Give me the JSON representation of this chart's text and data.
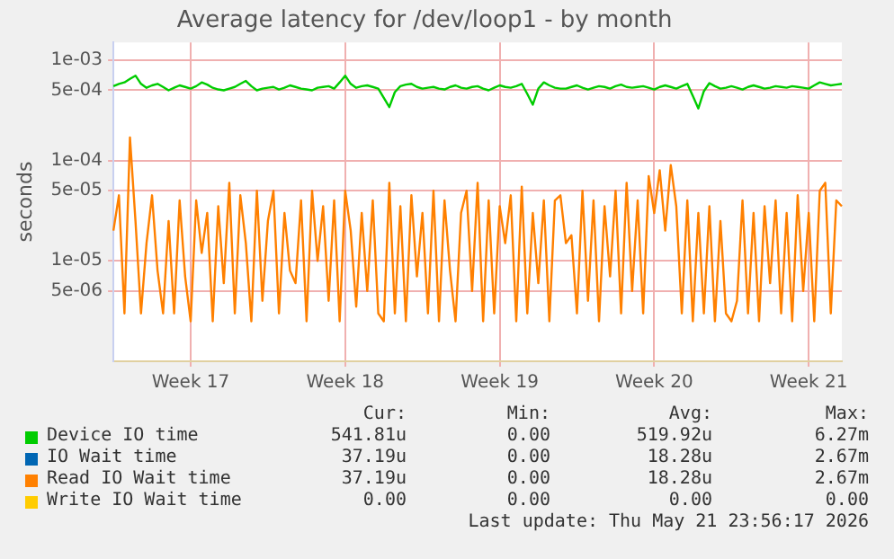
{
  "chart_data": {
    "type": "line",
    "title": "Average latency for /dev/loop1 - by month",
    "ylabel": "seconds",
    "categories": [
      null,
      null,
      null,
      null,
      null,
      null,
      null,
      null,
      null,
      null,
      null,
      null,
      null,
      null,
      "Week 17",
      null,
      null,
      null,
      null,
      null,
      null,
      null,
      null,
      null,
      null,
      null,
      null,
      null,
      null,
      null,
      null,
      null,
      null,
      null,
      null,
      null,
      null,
      null,
      null,
      null,
      null,
      null,
      "Week 18",
      null,
      null,
      null,
      null,
      null,
      null,
      null,
      null,
      null,
      null,
      null,
      null,
      null,
      null,
      null,
      null,
      null,
      null,
      null,
      null,
      null,
      null,
      null,
      null,
      null,
      null,
      null,
      "Week 19",
      null,
      null,
      null,
      null,
      null,
      null,
      null,
      null,
      null,
      null,
      null,
      null,
      null,
      null,
      null,
      null,
      null,
      null,
      null,
      null,
      null,
      null,
      null,
      null,
      null,
      null,
      null,
      "Week 20",
      null,
      null,
      null,
      null,
      null,
      null,
      null,
      null,
      null,
      null,
      null,
      null,
      null,
      null,
      null,
      null,
      null,
      null,
      null,
      null,
      null,
      null,
      null,
      null,
      null,
      null,
      null,
      "Week 21",
      null,
      null,
      null,
      null,
      null,
      null
    ],
    "series": [
      {
        "name": "Device IO time",
        "color": "#00cc00",
        "values": [
          0.00055,
          0.00058,
          0.0006,
          0.00065,
          0.0007,
          0.00058,
          0.00053,
          0.00056,
          0.00058,
          0.00054,
          0.0005,
          0.00053,
          0.00056,
          0.00054,
          0.00052,
          0.00055,
          0.0006,
          0.00057,
          0.00053,
          0.00051,
          0.0005,
          0.00052,
          0.00054,
          0.00058,
          0.00062,
          0.00055,
          0.0005,
          0.00052,
          0.00053,
          0.00054,
          0.00051,
          0.00053,
          0.00056,
          0.00054,
          0.00052,
          0.00051,
          0.0005,
          0.00053,
          0.00054,
          0.00055,
          0.00052,
          0.0006,
          0.0007,
          0.00058,
          0.00053,
          0.00055,
          0.00056,
          0.00054,
          0.00052,
          0.00042,
          0.00034,
          0.00048,
          0.00055,
          0.00057,
          0.00058,
          0.00054,
          0.00052,
          0.00053,
          0.00054,
          0.00052,
          0.00051,
          0.00054,
          0.00056,
          0.00053,
          0.00052,
          0.00054,
          0.00055,
          0.00052,
          0.0005,
          0.00053,
          0.00056,
          0.00054,
          0.00053,
          0.00055,
          0.00058,
          0.00046,
          0.00036,
          0.00052,
          0.0006,
          0.00056,
          0.00053,
          0.00052,
          0.00052,
          0.00054,
          0.00056,
          0.00053,
          0.00051,
          0.00053,
          0.00055,
          0.00054,
          0.00052,
          0.00055,
          0.00057,
          0.00054,
          0.00053,
          0.00054,
          0.00055,
          0.00053,
          0.00051,
          0.00054,
          0.00056,
          0.00054,
          0.00052,
          0.00055,
          0.00058,
          0.00044,
          0.00033,
          0.00049,
          0.00059,
          0.00055,
          0.00052,
          0.00053,
          0.00055,
          0.00053,
          0.00051,
          0.00054,
          0.00056,
          0.00054,
          0.00052,
          0.00053,
          0.00055,
          0.00054,
          0.00053,
          0.00055,
          0.00054,
          0.00053,
          0.00052,
          0.00056,
          0.0006,
          0.00058,
          0.00056,
          0.00057,
          0.00058
        ]
      },
      {
        "name": "IO Wait time",
        "color": "#0066b3",
        "values": [
          null,
          null,
          null,
          null,
          null,
          null,
          null,
          null,
          null,
          null,
          null,
          null,
          null,
          null,
          null,
          null,
          null,
          null,
          null,
          null,
          null,
          null,
          null,
          null,
          null,
          null,
          null,
          null,
          null,
          null,
          null,
          null,
          null,
          null,
          null,
          null,
          null,
          null,
          null,
          null,
          null,
          null,
          null,
          null,
          null,
          null,
          null,
          null,
          null,
          null,
          null,
          null,
          null,
          null,
          null,
          null,
          null,
          null,
          null,
          null,
          null,
          null,
          null,
          null,
          null,
          null,
          null,
          null,
          null,
          null,
          null,
          null,
          null,
          null,
          null,
          null,
          null,
          null,
          null,
          null,
          null,
          null,
          null,
          null,
          null,
          null,
          null,
          null,
          null,
          null,
          null,
          null,
          null,
          null,
          null,
          null,
          null,
          null,
          null,
          null,
          null,
          null,
          null,
          null,
          null,
          null,
          null,
          null,
          null,
          null,
          null,
          null,
          null,
          null,
          null,
          null,
          null,
          null,
          null,
          null,
          null,
          null,
          null,
          null,
          null,
          null,
          null,
          null,
          null,
          null,
          null,
          null,
          null
        ]
      },
      {
        "name": "Read IO Wait time",
        "color": "#ff8000",
        "values": [
          2e-05,
          4.5e-05,
          3e-06,
          0.00017,
          2.5e-05,
          3e-06,
          1.5e-05,
          4.5e-05,
          8e-06,
          3e-06,
          2.5e-05,
          3e-06,
          4e-05,
          7e-06,
          2.5e-06,
          4e-05,
          1.2e-05,
          3e-05,
          2.5e-06,
          3.5e-05,
          6e-06,
          6e-05,
          3e-06,
          4.5e-05,
          1.5e-05,
          2.5e-06,
          5e-05,
          4e-06,
          2.5e-05,
          5e-05,
          3e-06,
          3e-05,
          8e-06,
          6e-06,
          4e-05,
          2.5e-06,
          5e-05,
          1e-05,
          3.5e-05,
          4e-06,
          4e-05,
          2.5e-06,
          5e-05,
          2e-05,
          3.5e-06,
          3e-05,
          5e-06,
          4e-05,
          3e-06,
          2.5e-06,
          6e-05,
          3e-06,
          3.5e-05,
          2.5e-06,
          4.5e-05,
          7e-06,
          3e-05,
          3e-06,
          5e-05,
          2.5e-06,
          4e-05,
          8e-06,
          2.5e-06,
          3e-05,
          5e-05,
          5e-06,
          6e-05,
          2.5e-06,
          4e-05,
          3e-06,
          3.5e-05,
          1.5e-05,
          4.5e-05,
          2.5e-06,
          5.5e-05,
          3e-06,
          3e-05,
          6e-06,
          4e-05,
          2.5e-06,
          4e-05,
          4.5e-05,
          1.5e-05,
          1.8e-05,
          3e-06,
          5e-05,
          4e-06,
          4e-05,
          2.5e-06,
          3.5e-05,
          7e-06,
          5e-05,
          3e-06,
          6e-05,
          5e-06,
          4e-05,
          3e-06,
          7e-05,
          3e-05,
          8e-05,
          2e-05,
          9e-05,
          3.5e-05,
          3e-06,
          4e-05,
          2.5e-06,
          3e-05,
          3e-06,
          3.5e-05,
          2.5e-06,
          2.5e-05,
          3e-06,
          2.5e-06,
          4e-06,
          4e-05,
          3e-06,
          3e-05,
          2.5e-06,
          3.5e-05,
          6e-06,
          4e-05,
          3e-06,
          3e-05,
          2.5e-06,
          4.5e-05,
          5e-06,
          3e-05,
          2.5e-06,
          5e-05,
          6e-05,
          3e-06,
          4e-05,
          3.5e-05
        ]
      },
      {
        "name": "Write IO Wait time",
        "color": "#ffcc00",
        "values": [
          null,
          null,
          null,
          null,
          null,
          null,
          null,
          null,
          null,
          null,
          null,
          null,
          null,
          null,
          null,
          null,
          null,
          null,
          null,
          null,
          null,
          null,
          null,
          null,
          null,
          null,
          null,
          null,
          null,
          null,
          null,
          null,
          null,
          null,
          null,
          null,
          null,
          null,
          null,
          null,
          null,
          null,
          null,
          null,
          null,
          null,
          null,
          null,
          null,
          null,
          null,
          null,
          null,
          null,
          null,
          null,
          null,
          null,
          null,
          null,
          null,
          null,
          null,
          null,
          null,
          null,
          null,
          null,
          null,
          null,
          null,
          null,
          null,
          null,
          null,
          null,
          null,
          null,
          null,
          null,
          null,
          null,
          null,
          null,
          null,
          null,
          null,
          null,
          null,
          null,
          null,
          null,
          null,
          null,
          null,
          null,
          null,
          null,
          null,
          null,
          null,
          null,
          null,
          null,
          null,
          null,
          null,
          null,
          null,
          null,
          null,
          null,
          null,
          null,
          null,
          null,
          null,
          null,
          null,
          null,
          null,
          null,
          null,
          null,
          null,
          null,
          null,
          null,
          null,
          null,
          null,
          null,
          null
        ]
      }
    ],
    "ylim": [
      1e-06,
      0.0015
    ],
    "yticks": [
      {
        "value": 5e-06,
        "label": "5e-06"
      },
      {
        "value": 1e-05,
        "label": "1e-05"
      },
      {
        "value": 5e-05,
        "label": "5e-05"
      },
      {
        "value": 0.0001,
        "label": "1e-04"
      },
      {
        "value": 0.0005,
        "label": "5e-04"
      },
      {
        "value": 0.001,
        "label": "1e-03"
      }
    ],
    "log": "y",
    "grid": true,
    "legend": "bottom",
    "annotations": [
      "Cur:",
      "Min:",
      "Avg:",
      "Max:",
      "541.81u",
      "0.00",
      "519.92u",
      "6.27m",
      "37.19u",
      "0.00",
      "18.28u",
      "2.67m",
      "37.19u",
      "0.00",
      "18.28u",
      "2.67m",
      "0.00",
      "0.00",
      "0.00",
      "0.00",
      "Last update: Thu May 21 23:56:17 2026"
    ]
  }
}
